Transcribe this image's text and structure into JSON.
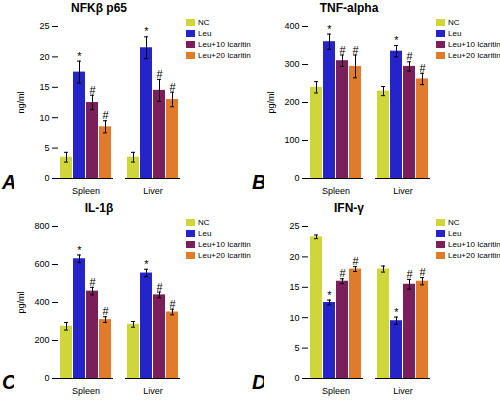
{
  "chart_data": [
    {
      "type": "bar",
      "panel": "A",
      "title": "NFKβ p65",
      "y_label": "ng/ml",
      "categories": [
        "Spleen",
        "Liver"
      ],
      "ylim": [
        0,
        25
      ],
      "yticks": [
        0,
        5,
        10,
        15,
        20,
        25
      ],
      "series": [
        {
          "name": "NC",
          "color": "#cfd63a",
          "values": [
            3.5,
            3.5
          ],
          "errors": [
            0.8,
            0.8
          ],
          "annotations": [
            null,
            null
          ]
        },
        {
          "name": "Leu",
          "color": "#2424c8",
          "values": [
            17.5,
            21.5
          ],
          "errors": [
            1.8,
            1.8
          ],
          "annotations": [
            "*",
            "*"
          ]
        },
        {
          "name": "Leu+10 Icaritin",
          "color": "#7a1f5c",
          "values": [
            12.5,
            14.5
          ],
          "errors": [
            1.2,
            1.8
          ],
          "annotations": [
            "#",
            "#"
          ]
        },
        {
          "name": "Leu+20 Icaritin",
          "color": "#e07b2c",
          "values": [
            8.5,
            13
          ],
          "errors": [
            1.0,
            1.2
          ],
          "annotations": [
            "#",
            "#"
          ]
        }
      ]
    },
    {
      "type": "bar",
      "panel": "B",
      "title": "TNF-alpha",
      "y_label": "pg/ml",
      "categories": [
        "Spleen",
        "Liver"
      ],
      "ylim": [
        0,
        400
      ],
      "yticks": [
        0,
        100,
        200,
        300,
        400
      ],
      "series": [
        {
          "name": "NC",
          "color": "#cfd63a",
          "values": [
            240,
            230
          ],
          "errors": [
            15,
            12
          ],
          "annotations": [
            null,
            null
          ]
        },
        {
          "name": "Leu",
          "color": "#2424c8",
          "values": [
            360,
            335
          ],
          "errors": [
            20,
            15
          ],
          "annotations": [
            "*",
            "*"
          ]
        },
        {
          "name": "Leu+10 Icaritin",
          "color": "#7a1f5c",
          "values": [
            310,
            295
          ],
          "errors": [
            15,
            12
          ],
          "annotations": [
            "#",
            "#"
          ]
        },
        {
          "name": "Leu+20 Icaritin",
          "color": "#e07b2c",
          "values": [
            295,
            262
          ],
          "errors": [
            30,
            15
          ],
          "annotations": [
            "#",
            "#"
          ]
        }
      ]
    },
    {
      "type": "bar",
      "panel": "C",
      "title": "IL-1β",
      "y_label": "pg/ml",
      "categories": [
        "Spleen",
        "Liver"
      ],
      "ylim": [
        0,
        800
      ],
      "yticks": [
        0,
        200,
        400,
        600,
        800
      ],
      "series": [
        {
          "name": "NC",
          "color": "#cfd63a",
          "values": [
            275,
            285
          ],
          "errors": [
            20,
            15
          ],
          "annotations": [
            null,
            null
          ]
        },
        {
          "name": "Leu",
          "color": "#2424c8",
          "values": [
            630,
            555
          ],
          "errors": [
            20,
            20
          ],
          "annotations": [
            "*",
            "*"
          ]
        },
        {
          "name": "Leu+10 Icaritin",
          "color": "#7a1f5c",
          "values": [
            460,
            440
          ],
          "errors": [
            20,
            15
          ],
          "annotations": [
            "#",
            "#"
          ]
        },
        {
          "name": "Leu+20 Icaritin",
          "color": "#e07b2c",
          "values": [
            310,
            350
          ],
          "errors": [
            15,
            15
          ],
          "annotations": [
            "#",
            "#"
          ]
        }
      ]
    },
    {
      "type": "bar",
      "panel": "D",
      "title": "IFN-γ",
      "categories": [
        "Spleen",
        "Liver"
      ],
      "ylim": [
        0,
        25
      ],
      "yticks": [
        0,
        5,
        10,
        15,
        20,
        25
      ],
      "series": [
        {
          "name": "NC",
          "color": "#cfd63a",
          "values": [
            23.3,
            18
          ],
          "errors": [
            0.3,
            0.5
          ],
          "annotations": [
            null,
            null
          ]
        },
        {
          "name": "Leu",
          "color": "#2424c8",
          "values": [
            12.5,
            9.5
          ],
          "errors": [
            0.4,
            0.6
          ],
          "annotations": [
            "*",
            "*"
          ]
        },
        {
          "name": "Leu+10 Icaritin",
          "color": "#7a1f5c",
          "values": [
            16,
            15.5
          ],
          "errors": [
            0.4,
            0.8
          ],
          "annotations": [
            "#",
            "#"
          ]
        },
        {
          "name": "Leu+20 Icaritin",
          "color": "#e07b2c",
          "values": [
            18,
            16
          ],
          "errors": [
            0.4,
            0.6
          ],
          "annotations": [
            "#",
            "#"
          ]
        }
      ]
    }
  ]
}
